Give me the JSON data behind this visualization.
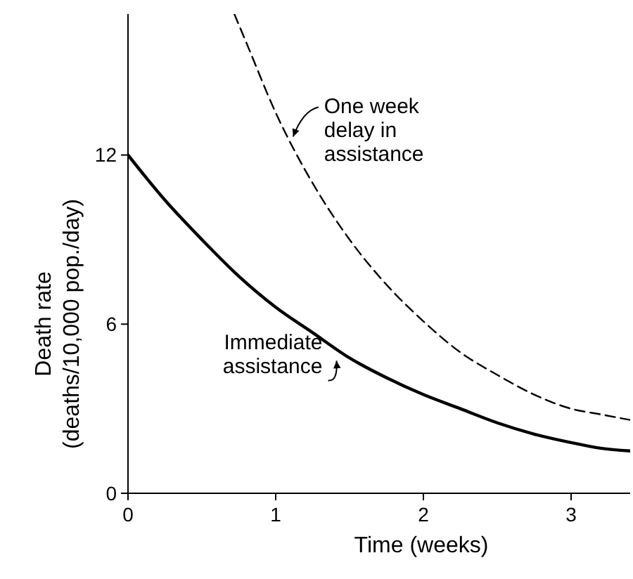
{
  "chart_data": {
    "type": "line",
    "xlabel": "Time (weeks)",
    "ylabel": "Death rate\n(deaths/10,000 pop./day)",
    "xlim": [
      0,
      3.4
    ],
    "ylim": [
      0,
      17
    ],
    "xticks": [
      0,
      1,
      2,
      3
    ],
    "yticks": [
      0,
      6,
      12
    ],
    "grid": false,
    "marker": "none",
    "series": [
      {
        "color": "#000000",
        "line_style": "solid",
        "x": [
          0,
          0.25,
          0.5,
          0.75,
          1,
          1.25,
          1.5,
          1.75,
          2,
          2.25,
          2.5,
          2.75,
          3,
          3.2,
          3.4
        ],
        "values": [
          12,
          10.4,
          9.0,
          7.7,
          6.6,
          5.7,
          4.8,
          4.1,
          3.5,
          3.0,
          2.5,
          2.1,
          1.8,
          1.6,
          1.5
        ]
      },
      {
        "color": "#000000",
        "line_style": "dashed",
        "x": [
          0.72,
          0.8,
          1.0,
          1.25,
          1.5,
          1.75,
          2,
          2.25,
          2.5,
          2.75,
          3,
          3.2,
          3.4
        ],
        "values": [
          17,
          16,
          13.5,
          11,
          9,
          7.4,
          6.1,
          5.0,
          4.2,
          3.5,
          3.0,
          2.8,
          2.6
        ]
      }
    ],
    "annotations": [
      {
        "text": "One week\ndelay in\nassistance",
        "x": 1.08,
        "y": 12.6
      },
      {
        "text": "Immediate\nassistance",
        "x": 1.45,
        "y": 4.8
      }
    ]
  }
}
